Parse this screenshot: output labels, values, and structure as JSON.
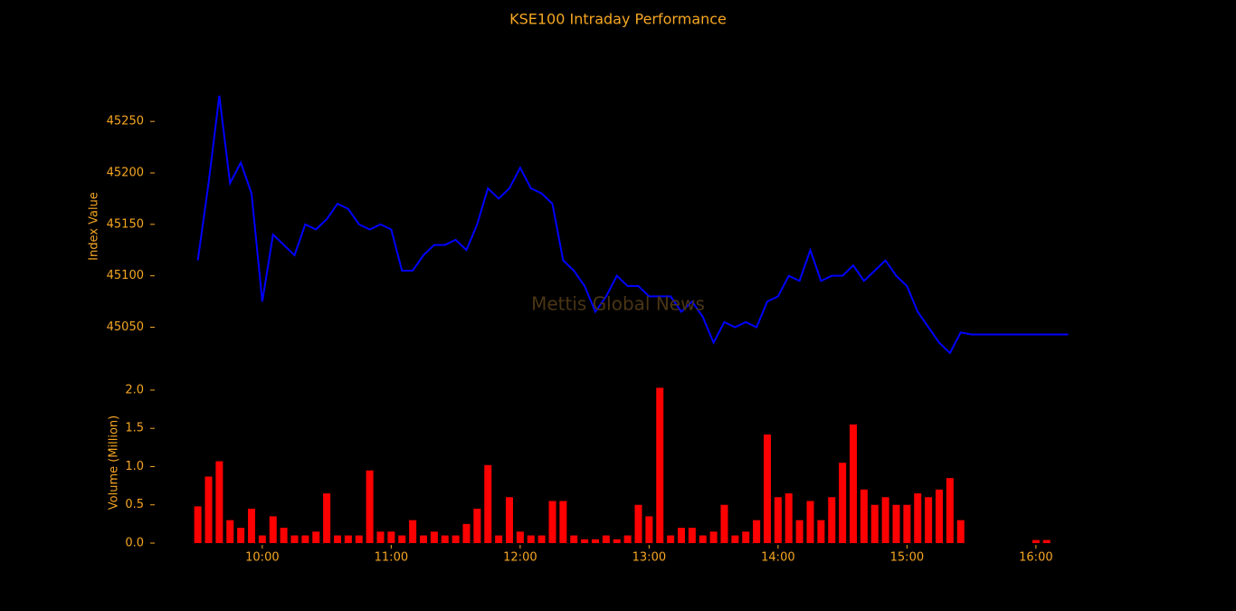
{
  "chart_data": [
    {
      "type": "line",
      "title": "KSE100 Intraday Performance",
      "y_label": "Index Value",
      "annotation": "Mettis Global News",
      "color": "#0000ff",
      "x": [
        570,
        575,
        580,
        585,
        590,
        595,
        600,
        605,
        610,
        615,
        620,
        625,
        630,
        635,
        640,
        645,
        650,
        655,
        660,
        665,
        670,
        675,
        680,
        685,
        690,
        695,
        700,
        705,
        710,
        715,
        720,
        725,
        730,
        735,
        740,
        745,
        750,
        755,
        760,
        765,
        770,
        775,
        780,
        785,
        790,
        795,
        800,
        805,
        810,
        815,
        820,
        825,
        830,
        835,
        840,
        845,
        850,
        855,
        860,
        865,
        870,
        875,
        880,
        885,
        890,
        895,
        900,
        905,
        910,
        915,
        920,
        925,
        930,
        975
      ],
      "values": [
        45115,
        45190,
        45275,
        45190,
        45210,
        45180,
        45075,
        45140,
        45130,
        45120,
        45150,
        45145,
        45155,
        45170,
        45165,
        45150,
        45145,
        45150,
        45145,
        45105,
        45105,
        45120,
        45130,
        45130,
        45135,
        45125,
        45150,
        45185,
        45175,
        45185,
        45205,
        45185,
        45180,
        45170,
        45115,
        45105,
        45090,
        45065,
        45080,
        45100,
        45090,
        45090,
        45080,
        45080,
        45080,
        45065,
        45075,
        45060,
        45035,
        45055,
        45050,
        45055,
        45050,
        45075,
        45080,
        45100,
        45095,
        45125,
        45095,
        45100,
        45100,
        45110,
        45095,
        45105,
        45115,
        45100,
        45090,
        45065,
        45050,
        45035,
        45025,
        45045,
        45043,
        45043
      ],
      "xlim": [
        547,
        1003
      ],
      "ylim": [
        45010,
        45295
      ],
      "yticks": [
        45050,
        45100,
        45150,
        45200,
        45250
      ]
    },
    {
      "type": "bar",
      "y_label": "Volume (Million)",
      "color": "#ff0000",
      "x": [
        570,
        575,
        580,
        585,
        590,
        595,
        600,
        605,
        610,
        615,
        620,
        625,
        630,
        635,
        640,
        645,
        650,
        655,
        660,
        665,
        670,
        675,
        680,
        685,
        690,
        695,
        700,
        705,
        710,
        715,
        720,
        725,
        730,
        735,
        740,
        745,
        750,
        755,
        760,
        765,
        770,
        775,
        780,
        785,
        790,
        795,
        800,
        805,
        810,
        815,
        820,
        825,
        830,
        835,
        840,
        845,
        850,
        855,
        860,
        865,
        870,
        875,
        880,
        885,
        890,
        895,
        900,
        905,
        910,
        915,
        920,
        925,
        960,
        965
      ],
      "values": [
        0.48,
        0.87,
        1.07,
        0.3,
        0.2,
        0.45,
        0.1,
        0.35,
        0.2,
        0.1,
        0.1,
        0.15,
        0.65,
        0.1,
        0.1,
        0.1,
        0.95,
        0.15,
        0.15,
        0.1,
        0.3,
        0.1,
        0.15,
        0.1,
        0.1,
        0.25,
        0.45,
        1.02,
        0.1,
        0.6,
        0.15,
        0.1,
        0.1,
        0.55,
        0.55,
        0.1,
        0.05,
        0.05,
        0.1,
        0.05,
        0.1,
        0.5,
        0.35,
        2.03,
        0.1,
        0.2,
        0.2,
        0.1,
        0.15,
        0.5,
        0.1,
        0.15,
        0.3,
        1.42,
        0.6,
        0.65,
        0.3,
        0.55,
        0.3,
        0.6,
        1.05,
        1.55,
        0.7,
        0.5,
        0.6,
        0.5,
        0.5,
        0.65,
        0.6,
        0.7,
        0.85,
        0.3,
        0.04,
        0.04
      ],
      "xlim": [
        547,
        1003
      ],
      "ylim": [
        0,
        2.1
      ],
      "yticks": [
        {
          "value": 0,
          "label": "0.0"
        },
        {
          "value": 0.5,
          "label": "0.5"
        },
        {
          "value": 1,
          "label": "1.0"
        },
        {
          "value": 1.5,
          "label": "1.5"
        },
        {
          "value": 2,
          "label": "2.0"
        }
      ],
      "xticks": [
        {
          "value": 600,
          "label": "10:00"
        },
        {
          "value": 660,
          "label": "11:00"
        },
        {
          "value": 720,
          "label": "12:00"
        },
        {
          "value": 780,
          "label": "13:00"
        },
        {
          "value": 840,
          "label": "14:00"
        },
        {
          "value": 900,
          "label": "15:00"
        },
        {
          "value": 960,
          "label": "16:00"
        }
      ]
    }
  ]
}
